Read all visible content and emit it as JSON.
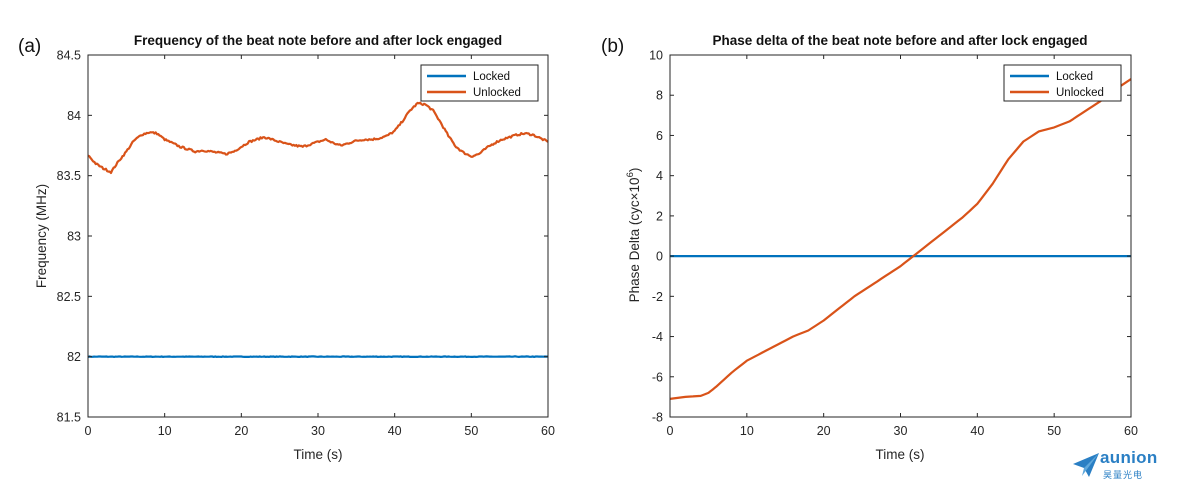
{
  "logo": {
    "name": "aunion",
    "subtitle": "昊量光电",
    "color": "#2a7fc4"
  },
  "colors": {
    "locked": "#0072BD",
    "unlocked": "#D95319"
  },
  "chart_data": [
    {
      "type": "line",
      "panel_label": "(a)",
      "title": "Frequency of the beat note before and after lock engaged",
      "xlabel": "Time (s)",
      "ylabel": "Frequency (MHz)",
      "xlim": [
        0,
        60
      ],
      "ylim": [
        81.5,
        84.5
      ],
      "xticks": [
        0,
        10,
        20,
        30,
        40,
        50,
        60
      ],
      "yticks": [
        81.5,
        82,
        82.5,
        83,
        83.5,
        84,
        84.5
      ],
      "ytick_labels": [
        "81.5",
        "82",
        "82.5",
        "83",
        "83.5",
        "84",
        "84.5"
      ],
      "legend_position": "top-right",
      "grid": false,
      "series": [
        {
          "name": "Locked",
          "color": "#0072BD",
          "noise": 0.002,
          "x": [
            0,
            60
          ],
          "y": [
            82.0,
            82.0
          ]
        },
        {
          "name": "Unlocked",
          "color": "#D95319",
          "noise": 0.008,
          "x": [
            0,
            1,
            2,
            3,
            4,
            5,
            6,
            7,
            8,
            9,
            10,
            11,
            12,
            13,
            14,
            15,
            16,
            17,
            18,
            19,
            20,
            21,
            22,
            23,
            24,
            25,
            26,
            27,
            28,
            29,
            30,
            31,
            32,
            33,
            34,
            35,
            36,
            37,
            38,
            39,
            40,
            41,
            42,
            43,
            44,
            45,
            46,
            47,
            48,
            49,
            50,
            51,
            52,
            53,
            54,
            55,
            56,
            57,
            58,
            59,
            60
          ],
          "y": [
            83.67,
            83.6,
            83.56,
            83.53,
            83.62,
            83.7,
            83.79,
            83.84,
            83.86,
            83.85,
            83.8,
            83.77,
            83.74,
            83.72,
            83.7,
            83.71,
            83.7,
            83.69,
            83.68,
            83.7,
            83.74,
            83.78,
            83.8,
            83.82,
            83.8,
            83.78,
            83.76,
            83.75,
            83.74,
            83.76,
            83.78,
            83.8,
            83.77,
            83.75,
            83.77,
            83.79,
            83.8,
            83.8,
            83.81,
            83.83,
            83.87,
            83.95,
            84.04,
            84.1,
            84.09,
            84.04,
            83.94,
            83.83,
            83.74,
            83.69,
            83.66,
            83.68,
            83.73,
            83.77,
            83.8,
            83.82,
            83.84,
            83.85,
            83.84,
            83.81,
            83.78
          ]
        }
      ]
    },
    {
      "type": "line",
      "panel_label": "(b)",
      "title": "Phase delta of the beat note before and after lock engaged",
      "xlabel": "Time (s)",
      "ylabel": "Phase Delta (cyc×10",
      "ylabel_exponent": "6",
      "ylabel_close": ")",
      "xlim": [
        0,
        60
      ],
      "ylim": [
        -8,
        10
      ],
      "xticks": [
        0,
        10,
        20,
        30,
        40,
        50,
        60
      ],
      "yticks": [
        -8,
        -6,
        -4,
        -2,
        0,
        2,
        4,
        6,
        8,
        10
      ],
      "ytick_labels": [
        "-8",
        "-6",
        "-4",
        "-2",
        "0",
        "2",
        "4",
        "6",
        "8",
        "10"
      ],
      "legend_position": "top-right",
      "grid": false,
      "series": [
        {
          "name": "Locked",
          "color": "#0072BD",
          "noise": 0,
          "x": [
            0,
            60
          ],
          "y": [
            0,
            0
          ]
        },
        {
          "name": "Unlocked",
          "color": "#D95319",
          "noise": 0,
          "x": [
            0,
            2,
            4,
            5,
            6,
            8,
            10,
            12,
            14,
            16,
            18,
            20,
            22,
            24,
            26,
            28,
            30,
            32,
            34,
            36,
            38,
            40,
            42,
            44,
            46,
            48,
            50,
            52,
            54,
            56,
            58,
            60
          ],
          "y": [
            -7.1,
            -7.0,
            -6.95,
            -6.8,
            -6.5,
            -5.8,
            -5.2,
            -4.8,
            -4.4,
            -4.0,
            -3.7,
            -3.2,
            -2.6,
            -2.0,
            -1.5,
            -1.0,
            -0.5,
            0.1,
            0.7,
            1.3,
            1.9,
            2.6,
            3.6,
            4.8,
            5.7,
            6.2,
            6.4,
            6.7,
            7.2,
            7.7,
            8.3,
            8.8
          ]
        }
      ]
    }
  ]
}
